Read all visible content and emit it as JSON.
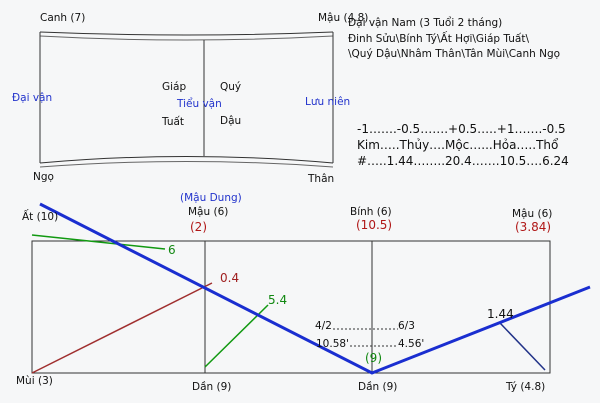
{
  "top_panel": {
    "corner_top_left": "Canh (7)",
    "corner_top_right": "Mậu (4.8)",
    "corner_bottom_left": "Ngọ",
    "corner_bottom_right": "Thân",
    "left_label": "Đại vận",
    "right_label": "Lưu niên",
    "center_label": "Tiểu vận",
    "cells": [
      "Giáp",
      "Quý",
      "Tuất",
      "Dậu"
    ]
  },
  "info": {
    "title": "Đại vận Nam (3 Tuổi 2 tháng)",
    "line1": "Đinh Sửu\\Bính Tý\\Ất Hợi\\Giáp Tuất\\",
    "line2": "\\Quý Dậu\\Nhâm Thân\\Tân Mùi\\Canh Ngọ"
  },
  "elements": {
    "row1": "-1…….-0.5…….+0.5…..+1…….-0.5",
    "row2": "Kim…..Thủy….Mộc…...Hỏa…..Thổ",
    "row3": "#…..1.44……..20.4…….10.5….6.24"
  },
  "lower_panel": {
    "note": "(Mậu Dung)",
    "top_labels": [
      {
        "name": "Ất (10)"
      },
      {
        "name": "Mậu (6)",
        "value": "(2)"
      },
      {
        "name": "Bính (6)",
        "value": "(10.5)"
      },
      {
        "name": "Mậu (6)",
        "value": "(3.84)"
      }
    ],
    "bottom_labels": [
      "Mùi (3)",
      "Dần (9)",
      "Dần (9)",
      "Tý (4.8)"
    ],
    "line_labels": [
      "6",
      "0.4",
      "5.4",
      "1.44",
      "(9)"
    ],
    "ratios": [
      "4/2",
      "6/3",
      "10.58'",
      "4.56'"
    ]
  }
}
